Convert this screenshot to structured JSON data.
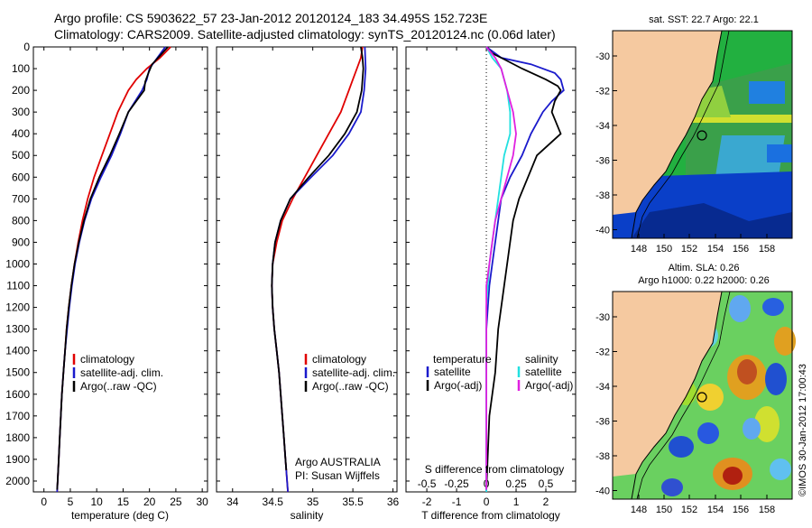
{
  "header": {
    "line1": "Argo profile: CS 5903622_57 23-Jan-2012 20120124_183 34.495S 152.723E",
    "line2": "Climatology: CARS2009. Satellite-adjusted climatology: synTS_20120124.nc (0.06d later)"
  },
  "colors": {
    "clim": "#e00000",
    "sat": "#1a1acc",
    "argo": "#000000",
    "sat_s": "#22e0e0",
    "argo_s": "#e020e0",
    "land": "#f5c9a0"
  },
  "chart_data": [
    {
      "type": "line",
      "xlabel": "temperature (deg C)",
      "ylabel": "",
      "xticks": [
        0,
        5,
        10,
        15,
        20,
        25,
        30
      ],
      "yticks": [
        0,
        100,
        200,
        300,
        400,
        500,
        600,
        700,
        800,
        900,
        1000,
        1100,
        1200,
        1300,
        1400,
        1500,
        1600,
        1700,
        1800,
        1900,
        2000
      ],
      "xlim": [
        -2,
        31
      ],
      "ylim": [
        2050,
        0
      ],
      "legend": [
        "climatology",
        "satellite-adj. clim.",
        "Argo(..raw -QC)"
      ],
      "series": [
        {
          "name": "climatology",
          "color": "#e00000",
          "points": [
            [
              24,
              0
            ],
            [
              22,
              50
            ],
            [
              19.5,
              100
            ],
            [
              17.5,
              150
            ],
            [
              16,
              200
            ],
            [
              15,
              250
            ],
            [
              14,
              300
            ],
            [
              12.5,
              400
            ],
            [
              11,
              500
            ],
            [
              9.5,
              600
            ],
            [
              8.3,
              700
            ],
            [
              7.3,
              800
            ],
            [
              6.5,
              900
            ],
            [
              5.8,
              1000
            ],
            [
              5.2,
              1100
            ],
            [
              4.7,
              1200
            ],
            [
              4.3,
              1300
            ],
            [
              4,
              1400
            ],
            [
              3.7,
              1500
            ],
            [
              3.4,
              1600
            ],
            [
              3.2,
              1700
            ],
            [
              3,
              1800
            ],
            [
              2.8,
              1900
            ],
            [
              2.6,
              2000
            ],
            [
              2.5,
              2050
            ]
          ]
        },
        {
          "name": "satellite-adj. clim.",
          "color": "#1a1acc",
          "points": [
            [
              23,
              0
            ],
            [
              21.5,
              50
            ],
            [
              20,
              100
            ],
            [
              19.5,
              150
            ],
            [
              18.6,
              200
            ],
            [
              17.3,
              250
            ],
            [
              16,
              300
            ],
            [
              14.5,
              400
            ],
            [
              12.8,
              500
            ],
            [
              10.8,
              600
            ],
            [
              9,
              700
            ],
            [
              7.7,
              800
            ],
            [
              6.7,
              900
            ],
            [
              5.9,
              1000
            ],
            [
              5.3,
              1100
            ],
            [
              4.8,
              1200
            ],
            [
              4.4,
              1300
            ],
            [
              4,
              1400
            ],
            [
              3.7,
              1500
            ],
            [
              3.4,
              1600
            ],
            [
              3.2,
              1700
            ],
            [
              3,
              1800
            ],
            [
              2.8,
              1900
            ],
            [
              2.6,
              2000
            ],
            [
              2.5,
              2050
            ]
          ]
        },
        {
          "name": "Argo(..raw -QC)",
          "color": "#000000",
          "points": [
            [
              23.5,
              0
            ],
            [
              22,
              40
            ],
            [
              20.5,
              80
            ],
            [
              19.8,
              120
            ],
            [
              19.2,
              160
            ],
            [
              19,
              200
            ],
            [
              17.5,
              250
            ],
            [
              16,
              300
            ],
            [
              14.3,
              400
            ],
            [
              12.5,
              500
            ],
            [
              10.5,
              600
            ],
            [
              8.8,
              700
            ],
            [
              7.6,
              800
            ],
            [
              6.6,
              900
            ],
            [
              5.8,
              1000
            ],
            [
              5.2,
              1100
            ],
            [
              4.7,
              1200
            ],
            [
              4.3,
              1300
            ],
            [
              4,
              1400
            ],
            [
              3.7,
              1500
            ],
            [
              3.4,
              1600
            ],
            [
              3.2,
              1700
            ],
            [
              3,
              1800
            ],
            [
              2.8,
              1900
            ],
            [
              2.6,
              2000
            ],
            [
              2.5,
              2040
            ]
          ]
        }
      ]
    },
    {
      "type": "line",
      "xlabel": "salinity",
      "xticks": [
        34,
        34.5,
        35,
        35.5,
        36
      ],
      "xlim": [
        33.8,
        36.05
      ],
      "ylim": [
        2050,
        0
      ],
      "legend": [
        "climatology",
        "satellite-adj. clim.",
        "Argo(..raw -QC)"
      ],
      "annotation": [
        "Argo AUSTRALIA",
        "PI: Susan Wijffels"
      ],
      "series": [
        {
          "name": "climatology",
          "color": "#e00000",
          "points": [
            [
              35.62,
              0
            ],
            [
              35.6,
              50
            ],
            [
              35.55,
              100
            ],
            [
              35.5,
              150
            ],
            [
              35.45,
              200
            ],
            [
              35.35,
              300
            ],
            [
              35.2,
              400
            ],
            [
              35.05,
              500
            ],
            [
              34.9,
              600
            ],
            [
              34.75,
              700
            ],
            [
              34.62,
              800
            ],
            [
              34.55,
              900
            ],
            [
              34.5,
              1000
            ],
            [
              34.49,
              1100
            ],
            [
              34.5,
              1200
            ],
            [
              34.52,
              1300
            ],
            [
              34.55,
              1400
            ],
            [
              34.58,
              1500
            ],
            [
              34.6,
              1600
            ],
            [
              34.62,
              1700
            ],
            [
              34.64,
              1800
            ],
            [
              34.66,
              1900
            ],
            [
              34.68,
              2000
            ],
            [
              34.69,
              2050
            ]
          ]
        },
        {
          "name": "satellite-adj. clim.",
          "color": "#1a1acc",
          "points": [
            [
              35.65,
              0
            ],
            [
              35.66,
              100
            ],
            [
              35.64,
              200
            ],
            [
              35.6,
              300
            ],
            [
              35.45,
              400
            ],
            [
              35.25,
              500
            ],
            [
              34.98,
              600
            ],
            [
              34.72,
              700
            ],
            [
              34.6,
              800
            ],
            [
              34.53,
              900
            ],
            [
              34.5,
              1000
            ],
            [
              34.49,
              1100
            ],
            [
              34.5,
              1200
            ],
            [
              34.52,
              1300
            ],
            [
              34.55,
              1400
            ],
            [
              34.58,
              1500
            ],
            [
              34.6,
              1600
            ],
            [
              34.62,
              1700
            ],
            [
              34.64,
              1800
            ],
            [
              34.66,
              1900
            ],
            [
              34.68,
              2000
            ],
            [
              34.69,
              2050
            ]
          ]
        },
        {
          "name": "Argo(..raw -QC)",
          "color": "#000000",
          "points": [
            [
              35.6,
              0
            ],
            [
              35.62,
              50
            ],
            [
              35.63,
              100
            ],
            [
              35.61,
              200
            ],
            [
              35.55,
              300
            ],
            [
              35.4,
              400
            ],
            [
              35.2,
              500
            ],
            [
              34.95,
              600
            ],
            [
              34.72,
              700
            ],
            [
              34.6,
              800
            ],
            [
              34.53,
              900
            ],
            [
              34.5,
              1000
            ],
            [
              34.49,
              1100
            ],
            [
              34.5,
              1200
            ],
            [
              34.52,
              1300
            ],
            [
              34.55,
              1400
            ],
            [
              34.58,
              1500
            ],
            [
              34.6,
              1600
            ],
            [
              34.62,
              1700
            ],
            [
              34.64,
              1800
            ],
            [
              34.66,
              1900
            ],
            [
              34.67,
              1950
            ]
          ]
        }
      ]
    },
    {
      "type": "line",
      "xlabel": "T difference from climatology",
      "xlabel_top": "S difference from climatology",
      "xticks": [
        -2,
        -1,
        0,
        1,
        2
      ],
      "xticks_top": [
        "-0.5",
        "-0.25",
        "0",
        "0.25",
        "0.5"
      ],
      "xlim": [
        -2.7,
        3
      ],
      "ylim": [
        2050,
        0
      ],
      "legend_titles": [
        "temperature",
        "salinity"
      ],
      "legend": [
        "satellite",
        "Argo(-adj)",
        "satellite",
        "Argo(-adj)"
      ],
      "series": [
        {
          "name": "satellite",
          "group": "temperature",
          "color": "#1a1acc",
          "points": [
            [
              0,
              0
            ],
            [
              0.5,
              50
            ],
            [
              1.5,
              80
            ],
            [
              2.3,
              120
            ],
            [
              2.5,
              150
            ],
            [
              2.6,
              200
            ],
            [
              2.2,
              250
            ],
            [
              1.9,
              300
            ],
            [
              1.5,
              400
            ],
            [
              1.2,
              500
            ],
            [
              0.8,
              600
            ],
            [
              0.5,
              700
            ],
            [
              0.4,
              800
            ],
            [
              0.3,
              900
            ],
            [
              0.2,
              1000
            ],
            [
              0.1,
              1100
            ],
            [
              0.05,
              1200
            ],
            [
              0,
              1300
            ],
            [
              0,
              1400
            ],
            [
              0,
              1500
            ],
            [
              0,
              2050
            ]
          ]
        },
        {
          "name": "Argo(-adj)",
          "group": "temperature",
          "color": "#000000",
          "points": [
            [
              0,
              0
            ],
            [
              0.2,
              30
            ],
            [
              0.5,
              50
            ],
            [
              1.2,
              100
            ],
            [
              2,
              150
            ],
            [
              2.4,
              180
            ],
            [
              2.5,
              200
            ],
            [
              2.3,
              250
            ],
            [
              2.2,
              300
            ],
            [
              2.5,
              400
            ],
            [
              1.7,
              500
            ],
            [
              1.4,
              600
            ],
            [
              1.1,
              700
            ],
            [
              0.9,
              800
            ],
            [
              0.8,
              900
            ],
            [
              0.7,
              1000
            ],
            [
              0.6,
              1100
            ],
            [
              0.5,
              1200
            ],
            [
              0.4,
              1300
            ],
            [
              0.3,
              1500
            ],
            [
              0.1,
              1700
            ],
            [
              0,
              2040
            ]
          ]
        },
        {
          "name": "satellite",
          "group": "salinity",
          "color": "#22e0e0",
          "points": [
            [
              0,
              0
            ],
            [
              0.2,
              50
            ],
            [
              0.5,
              100
            ],
            [
              0.7,
              200
            ],
            [
              0.8,
              300
            ],
            [
              0.8,
              400
            ],
            [
              0.6,
              500
            ],
            [
              0.5,
              600
            ],
            [
              0.4,
              700
            ],
            [
              0.3,
              800
            ],
            [
              0.2,
              900
            ],
            [
              0.1,
              1000
            ],
            [
              0.05,
              1100
            ],
            [
              0,
              1200
            ],
            [
              0,
              2050
            ]
          ]
        },
        {
          "name": "Argo(-adj)",
          "group": "salinity",
          "color": "#e020e0",
          "points": [
            [
              0,
              0
            ],
            [
              0.3,
              50
            ],
            [
              0.5,
              100
            ],
            [
              0.7,
              200
            ],
            [
              0.9,
              300
            ],
            [
              1,
              400
            ],
            [
              0.9,
              500
            ],
            [
              0.7,
              600
            ],
            [
              0.5,
              700
            ],
            [
              0.3,
              800
            ],
            [
              0.2,
              900
            ],
            [
              0.1,
              1000
            ],
            [
              0,
              1100
            ],
            [
              0,
              2040
            ]
          ]
        }
      ]
    }
  ],
  "maps": {
    "top": {
      "title": "sat. SST: 22.7  Argo: 22.1",
      "yticks": [
        "-30",
        "-32",
        "-34",
        "-36",
        "-38",
        "-40"
      ],
      "xticks": [
        "148",
        "150",
        "152",
        "154",
        "156",
        "158"
      ]
    },
    "bottom": {
      "title1": "Altim. SLA: 0.26",
      "title2": "Argo h1000: 0.22 h2000: 0.26",
      "yticks": [
        "-30",
        "-32",
        "-34",
        "-36",
        "-38",
        "-40"
      ],
      "xticks": [
        "148",
        "150",
        "152",
        "154",
        "156",
        "158"
      ],
      "credit": "©IMOS 30-Jan-2012 17:00:43"
    }
  }
}
